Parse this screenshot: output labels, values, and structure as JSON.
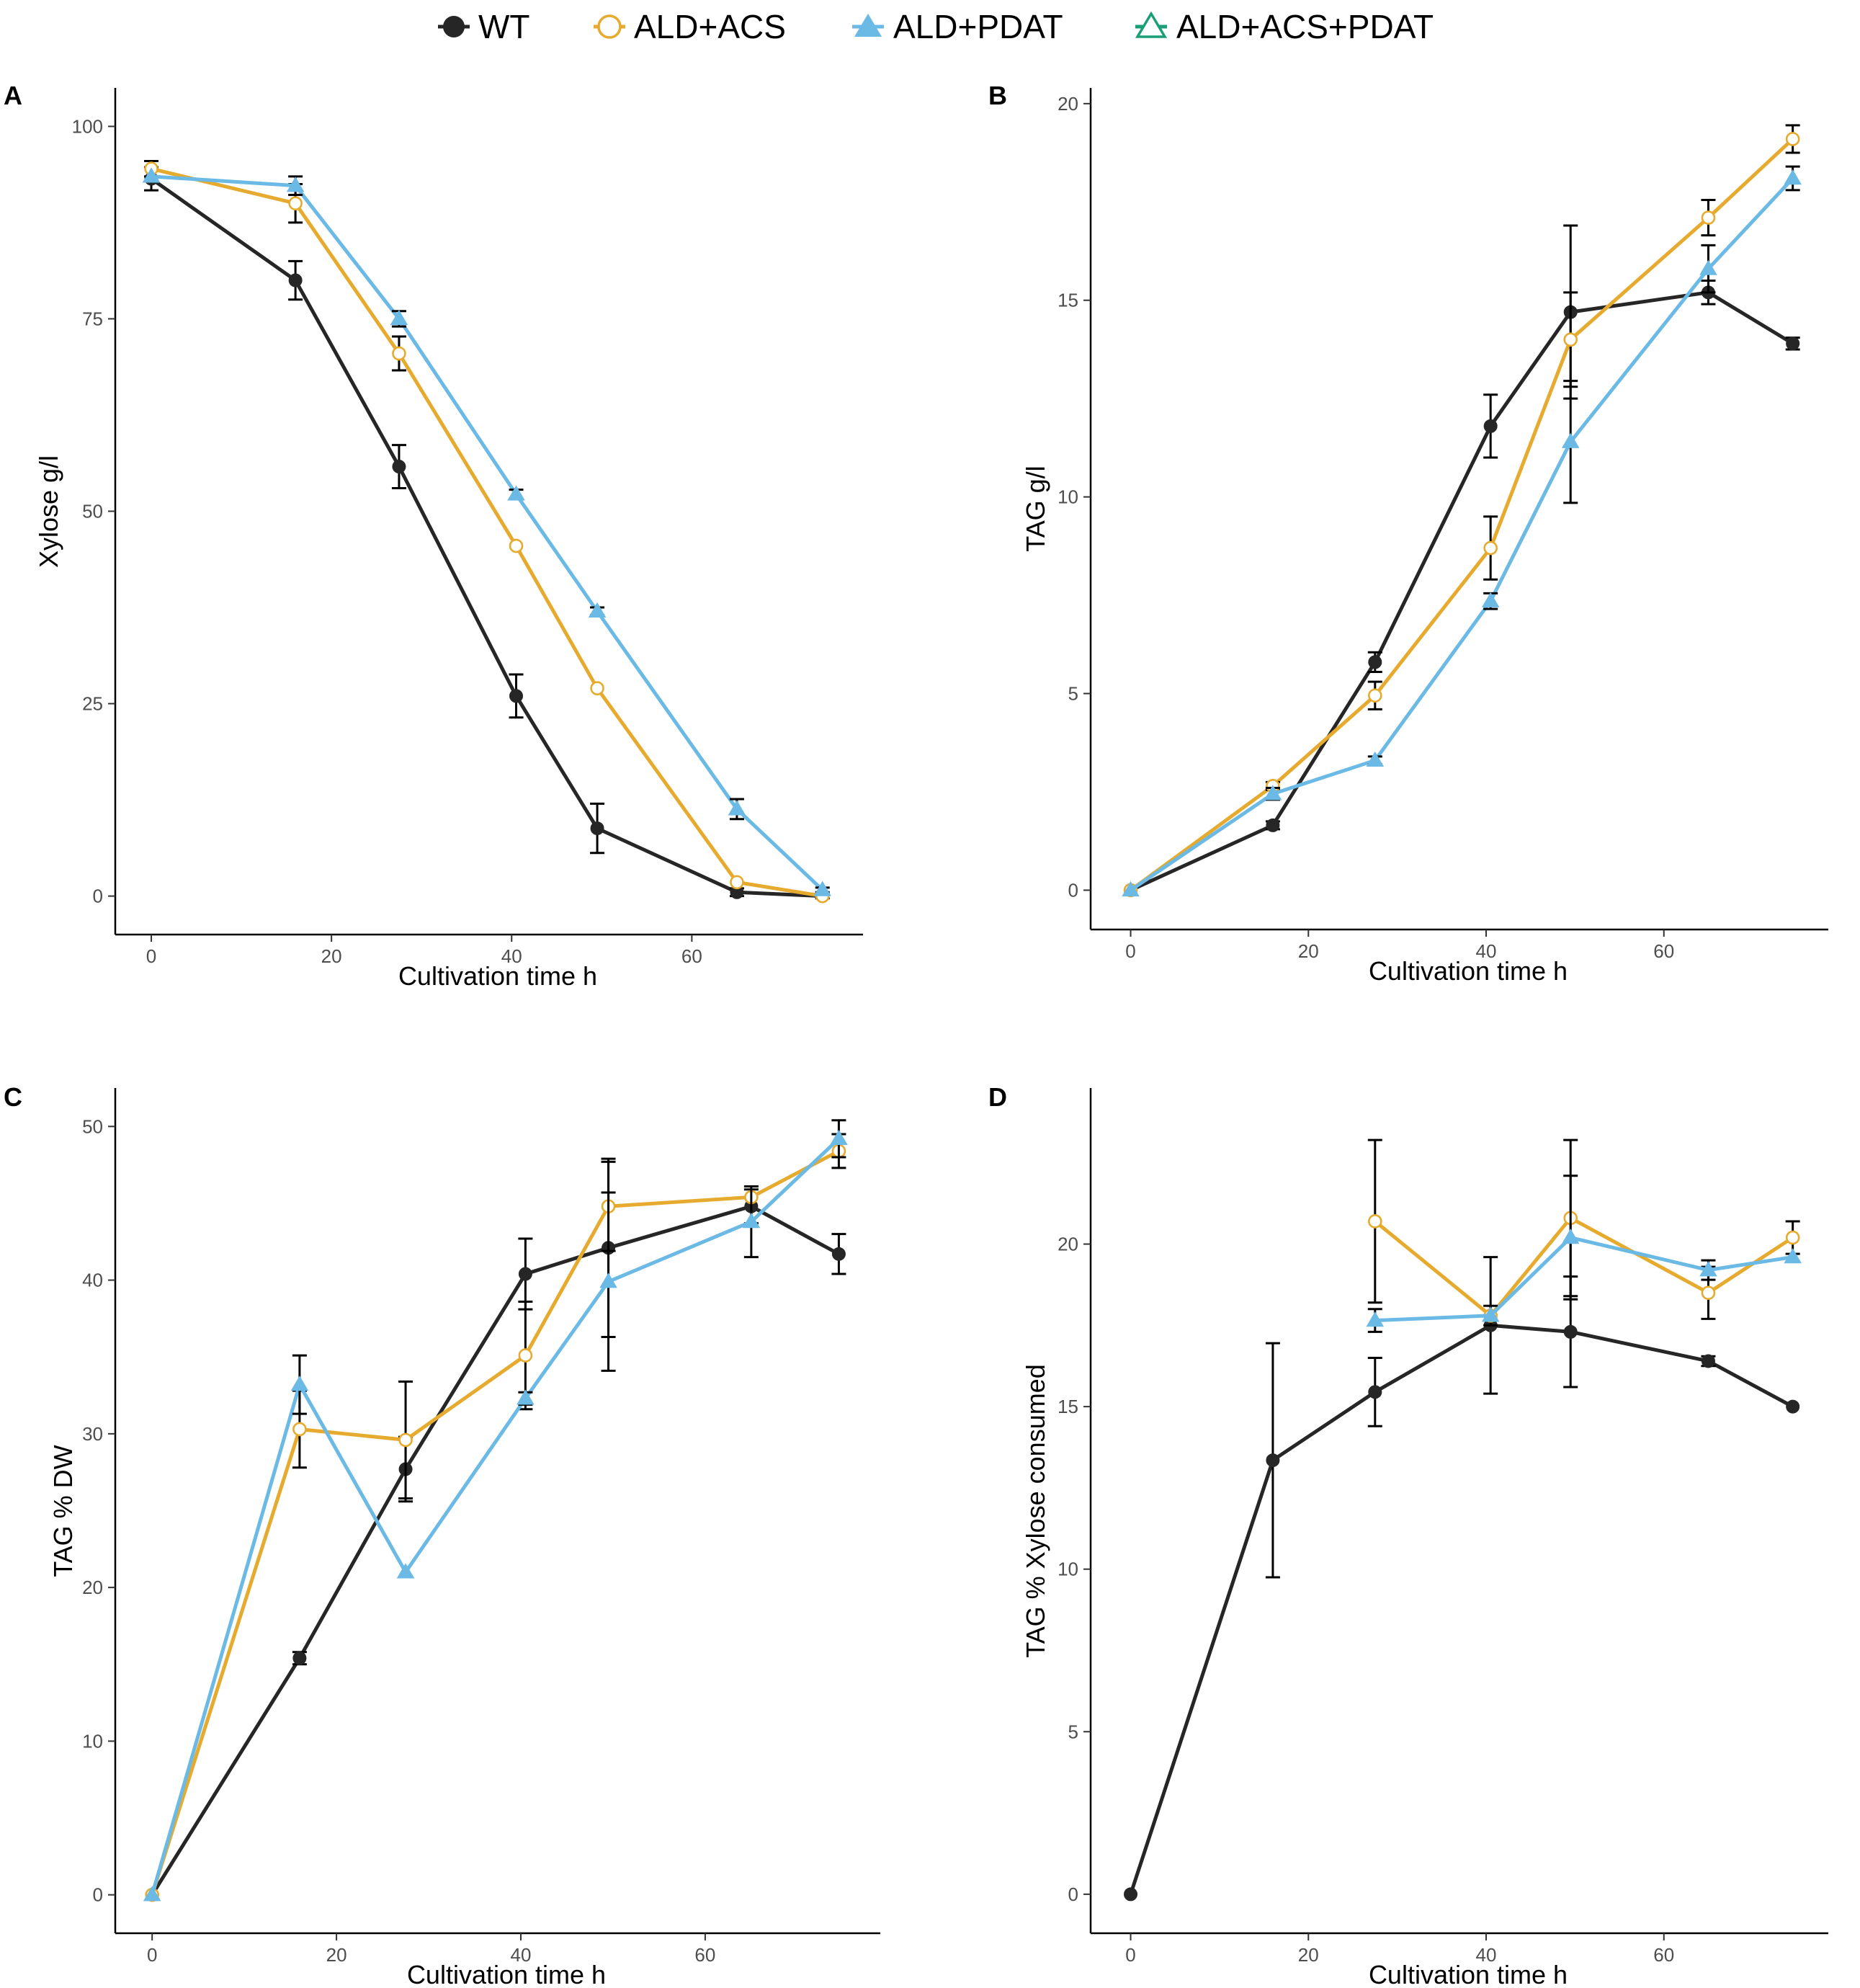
{
  "legend": [
    {
      "name": "WT",
      "color": "#262626",
      "marker": "filled-circle"
    },
    {
      "name": "ALD+ACS",
      "color": "#E6AB2E",
      "marker": "open-circle"
    },
    {
      "name": "ALD+PDAT",
      "color": "#6BB9E5",
      "marker": "filled-triangle"
    },
    {
      "name": "ALD+ACS+PDAT",
      "color": "#1A9E77",
      "marker": "open-triangle"
    }
  ],
  "chart_data": [
    {
      "panel": "A",
      "type": "line",
      "xlabel": "Cultivation time h",
      "ylabel": "Xylose g/l",
      "xlim": [
        -4,
        79
      ],
      "ylim": [
        -5,
        105
      ],
      "xticks": [
        0,
        20,
        40,
        60
      ],
      "yticks": [
        0,
        25,
        50,
        75,
        100
      ],
      "series": [
        {
          "name": "WT",
          "x": [
            0,
            16,
            27.5,
            40.5,
            49.5,
            65,
            74.5
          ],
          "y": [
            93.2,
            80,
            55.8,
            26,
            8.8,
            0.5,
            0
          ],
          "err": [
            1.5,
            2.5,
            2.8,
            2.8,
            3.2,
            0.5,
            0.3
          ]
        },
        {
          "name": "ALD+ACS",
          "x": [
            0,
            16,
            27.5,
            40.5,
            49.5,
            65,
            74.5
          ],
          "y": [
            94.5,
            90,
            70.5,
            45.5,
            27,
            1.8,
            0
          ],
          "err": [
            1,
            2.5,
            2.2,
            0,
            0,
            0,
            0
          ]
        },
        {
          "name": "ALD+PDAT",
          "x": [
            0,
            16,
            27.5,
            40.5,
            49.5,
            65,
            74.5
          ],
          "y": [
            93.5,
            92.3,
            75,
            52.2,
            37,
            11.3,
            0.8
          ],
          "err": [
            0,
            1.2,
            1,
            0.6,
            0.5,
            1.3,
            0.3
          ]
        }
      ]
    },
    {
      "panel": "B",
      "type": "line",
      "xlabel": "Cultivation time h",
      "ylabel": "TAG g/l",
      "xlim": [
        -4.5,
        78.5
      ],
      "ylim": [
        -1,
        20.4
      ],
      "xticks": [
        0,
        20,
        40,
        60
      ],
      "yticks": [
        0,
        5,
        10,
        15,
        20
      ],
      "series": [
        {
          "name": "WT",
          "x": [
            0,
            16,
            27.5,
            40.5,
            49.5,
            65,
            74.5
          ],
          "y": [
            0,
            1.65,
            5.8,
            11.8,
            14.7,
            15.2,
            13.9
          ],
          "err": [
            0,
            0.1,
            0.25,
            0.8,
            2.2,
            0.3,
            0.15
          ]
        },
        {
          "name": "ALD+ACS",
          "x": [
            0,
            16,
            27.5,
            40.5,
            49.5,
            65,
            74.5
          ],
          "y": [
            0,
            2.65,
            4.95,
            8.7,
            14,
            17.1,
            19.1
          ],
          "err": [
            0,
            0.1,
            0.35,
            0.8,
            1.2,
            0.45,
            0.35
          ]
        },
        {
          "name": "ALD+PDAT",
          "x": [
            0,
            16,
            27.5,
            40.5,
            49.5,
            65,
            74.5
          ],
          "y": [
            0,
            2.45,
            3.3,
            7.35,
            11.4,
            15.8,
            18.1
          ],
          "err": [
            0,
            0.15,
            0.1,
            0.2,
            1.55,
            0.6,
            0.3
          ]
        }
      ]
    },
    {
      "panel": "C",
      "type": "line",
      "xlabel": "Cultivation time h",
      "ylabel": "TAG % DW",
      "xlim": [
        -4,
        79
      ],
      "ylim": [
        -2.5,
        52.5
      ],
      "xticks": [
        0,
        20,
        40,
        60
      ],
      "yticks": [
        0,
        10,
        20,
        30,
        40,
        50
      ],
      "series": [
        {
          "name": "WT",
          "x": [
            0,
            16,
            27.5,
            40.5,
            49.5,
            65,
            74.5
          ],
          "y": [
            0,
            15.4,
            27.7,
            40.4,
            42.1,
            44.8,
            41.7
          ],
          "err": [
            0,
            0.4,
            2.1,
            2.3,
            5.8,
            1.1,
            1.3
          ]
        },
        {
          "name": "ALD+ACS",
          "x": [
            0,
            16,
            27.5,
            40.5,
            49.5,
            65,
            74.5
          ],
          "y": [
            0,
            30.3,
            29.6,
            35.1,
            44.8,
            45.4,
            48.4
          ],
          "err": [
            0,
            2.5,
            3.8,
            3.5,
            2.9,
            0,
            1.1
          ]
        },
        {
          "name": "ALD+PDAT",
          "x": [
            0,
            16,
            27.5,
            40.5,
            49.5,
            65,
            74.5
          ],
          "y": [
            0,
            33.2,
            21,
            32.3,
            39.9,
            43.8,
            49.2
          ],
          "err": [
            0,
            1.9,
            0,
            0.4,
            5.8,
            2.3,
            1.2
          ]
        }
      ]
    },
    {
      "panel": "D",
      "type": "line",
      "xlabel": "Cultivation time h",
      "ylabel": "TAG % Xylose consumed",
      "xlim": [
        -4.5,
        78.5
      ],
      "ylim": [
        -1.2,
        24.8
      ],
      "xticks": [
        0,
        20,
        40,
        60
      ],
      "yticks": [
        0,
        5,
        10,
        15,
        20
      ],
      "series": [
        {
          "name": "WT",
          "x": [
            0,
            16,
            27.5,
            40.5,
            49.5,
            65,
            74.5
          ],
          "y": [
            0,
            13.35,
            15.45,
            17.5,
            17.3,
            16.4,
            15
          ],
          "err": [
            0,
            3.6,
            1.05,
            2.1,
            1.7,
            0.15,
            0
          ]
        },
        {
          "name": "ALD+ACS",
          "x": [
            27.5,
            40.5,
            49.5,
            65,
            74.5
          ],
          "y": [
            20.7,
            17.8,
            20.8,
            18.5,
            20.2
          ],
          "err": [
            2.5,
            0.3,
            2.4,
            0.8,
            0.5
          ]
        },
        {
          "name": "ALD+PDAT",
          "x": [
            27.5,
            40.5,
            49.5,
            65,
            74.5
          ],
          "y": [
            17.65,
            17.8,
            20.2,
            19.2,
            19.6
          ],
          "err": [
            0.35,
            0,
            1.9,
            0.3,
            0
          ]
        }
      ]
    }
  ]
}
